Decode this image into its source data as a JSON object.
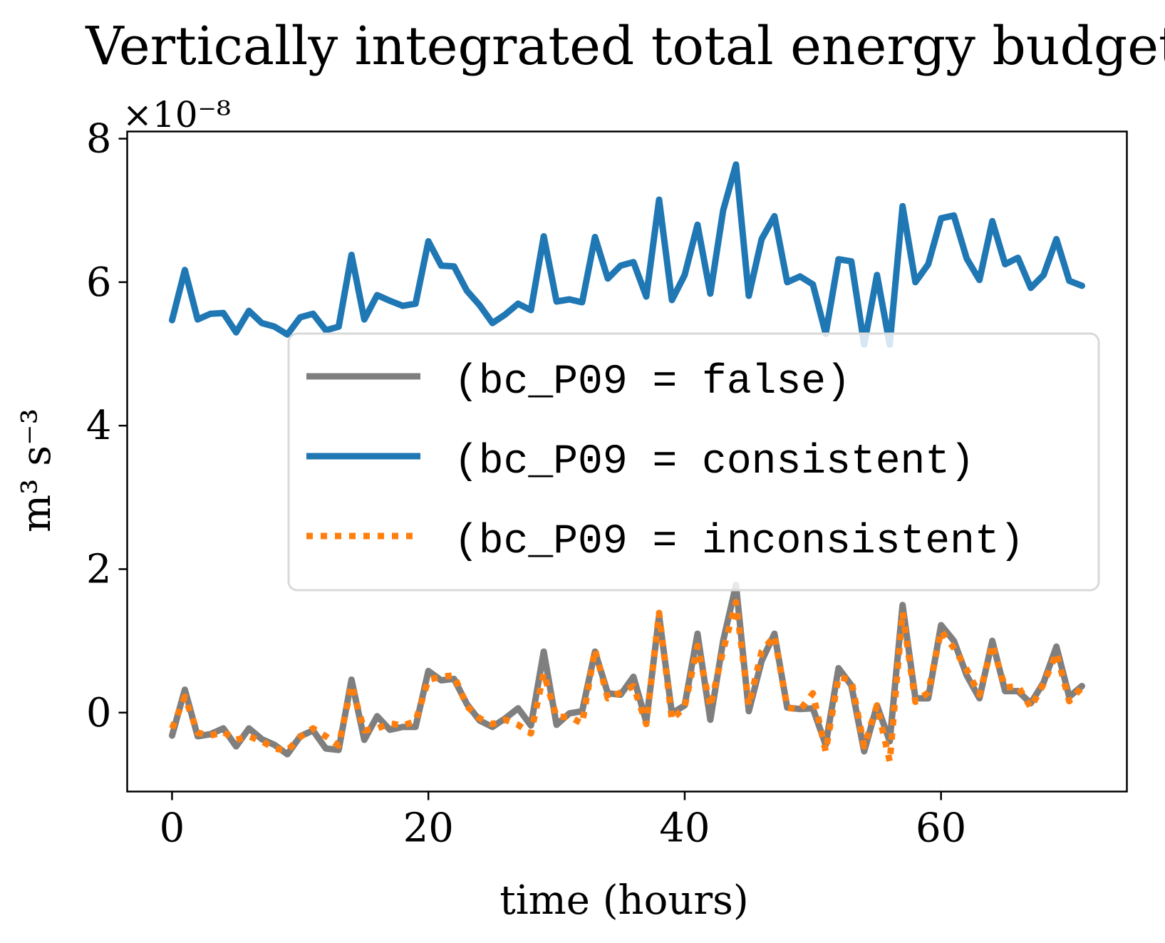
{
  "chart_data": {
    "type": "line",
    "title": "Vertically integrated total energy budget",
    "xlabel": "time (hours)",
    "ylabel": "m³ s⁻³",
    "y_multiplier": "×10⁻⁸",
    "xlim": [
      -3.5,
      74.5
    ],
    "ylim": [
      -1.1,
      8.1
    ],
    "xticks": [
      0,
      20,
      40,
      60
    ],
    "xtick_labels": [
      "0",
      "20",
      "40",
      "60"
    ],
    "yticks": [
      0,
      2,
      4,
      6,
      8
    ],
    "ytick_labels": [
      "0",
      "2",
      "4",
      "6",
      "8"
    ],
    "grid": false,
    "legend_position": "center-right",
    "x": [
      0,
      1,
      2,
      3,
      4,
      5,
      6,
      7,
      8,
      9,
      10,
      11,
      12,
      13,
      14,
      15,
      16,
      17,
      18,
      19,
      20,
      21,
      22,
      23,
      24,
      25,
      26,
      27,
      28,
      29,
      30,
      31,
      32,
      33,
      34,
      35,
      36,
      37,
      38,
      39,
      40,
      41,
      42,
      43,
      44,
      45,
      46,
      47,
      48,
      49,
      50,
      51,
      52,
      53,
      54,
      55,
      56,
      57,
      58,
      59,
      60,
      61,
      62,
      63,
      64,
      65,
      66,
      67,
      68,
      69,
      70,
      71
    ],
    "series": [
      {
        "name": "(bc_P09 = false)",
        "color": "#7f7f7f",
        "style": "solid",
        "values": [
          -0.32,
          0.32,
          -0.33,
          -0.3,
          -0.22,
          -0.47,
          -0.22,
          -0.37,
          -0.45,
          -0.58,
          -0.33,
          -0.25,
          -0.5,
          -0.52,
          0.46,
          -0.38,
          -0.05,
          -0.24,
          -0.2,
          -0.2,
          0.58,
          0.45,
          0.47,
          0.12,
          -0.11,
          -0.2,
          -0.08,
          0.06,
          -0.18,
          0.85,
          -0.17,
          -0.01,
          0.02,
          0.85,
          0.27,
          0.25,
          0.5,
          -0.13,
          1.35,
          -0.01,
          0.1,
          1.1,
          -0.1,
          1.0,
          1.78,
          0.02,
          0.72,
          1.1,
          0.07,
          0.05,
          0.06,
          -0.45,
          0.62,
          0.38,
          -0.54,
          0.1,
          -0.4,
          1.5,
          0.2,
          0.2,
          1.22,
          1.0,
          0.52,
          0.2,
          1.0,
          0.3,
          0.3,
          0.13,
          0.42,
          0.92,
          0.22,
          0.37
        ]
      },
      {
        "name": "(bc_P09 = consistent)",
        "color": "#1f77b4",
        "style": "solid",
        "values": [
          5.47,
          6.17,
          5.48,
          5.56,
          5.57,
          5.3,
          5.6,
          5.43,
          5.38,
          5.27,
          5.51,
          5.56,
          5.33,
          5.38,
          6.38,
          5.48,
          5.82,
          5.74,
          5.67,
          5.7,
          6.57,
          6.23,
          6.22,
          5.88,
          5.68,
          5.43,
          5.55,
          5.7,
          5.61,
          6.64,
          5.73,
          5.76,
          5.72,
          6.63,
          6.05,
          6.23,
          6.28,
          5.8,
          7.15,
          5.75,
          6.1,
          6.8,
          5.84,
          7.0,
          7.64,
          5.81,
          6.6,
          6.92,
          6.0,
          6.08,
          5.97,
          5.28,
          6.32,
          6.29,
          5.13,
          6.1,
          5.13,
          7.06,
          6.0,
          6.25,
          6.89,
          6.93,
          6.33,
          6.03,
          6.85,
          6.25,
          6.34,
          5.92,
          6.1,
          6.6,
          6.02,
          5.95
        ]
      },
      {
        "name": "(bc_P09 = inconsistent)",
        "color": "#ff7f0e",
        "style": "dotted",
        "values": [
          -0.22,
          0.22,
          -0.28,
          -0.32,
          -0.27,
          -0.38,
          -0.33,
          -0.4,
          -0.5,
          -0.53,
          -0.34,
          -0.22,
          -0.33,
          -0.46,
          0.38,
          -0.25,
          -0.22,
          -0.15,
          -0.18,
          -0.12,
          0.46,
          0.5,
          0.52,
          0.09,
          -0.08,
          -0.16,
          -0.1,
          -0.17,
          -0.29,
          0.55,
          -0.06,
          -0.06,
          -0.15,
          0.88,
          0.2,
          0.28,
          0.37,
          -0.16,
          1.39,
          -0.1,
          0.08,
          0.93,
          0.08,
          0.87,
          1.54,
          0.1,
          0.85,
          1.07,
          0.07,
          0.04,
          0.27,
          -0.54,
          0.5,
          0.45,
          -0.47,
          0.1,
          -0.68,
          1.4,
          0.15,
          0.28,
          1.14,
          0.9,
          0.6,
          0.25,
          0.95,
          0.35,
          0.37,
          0.07,
          0.4,
          0.83,
          0.16,
          0.35
        ]
      }
    ]
  }
}
